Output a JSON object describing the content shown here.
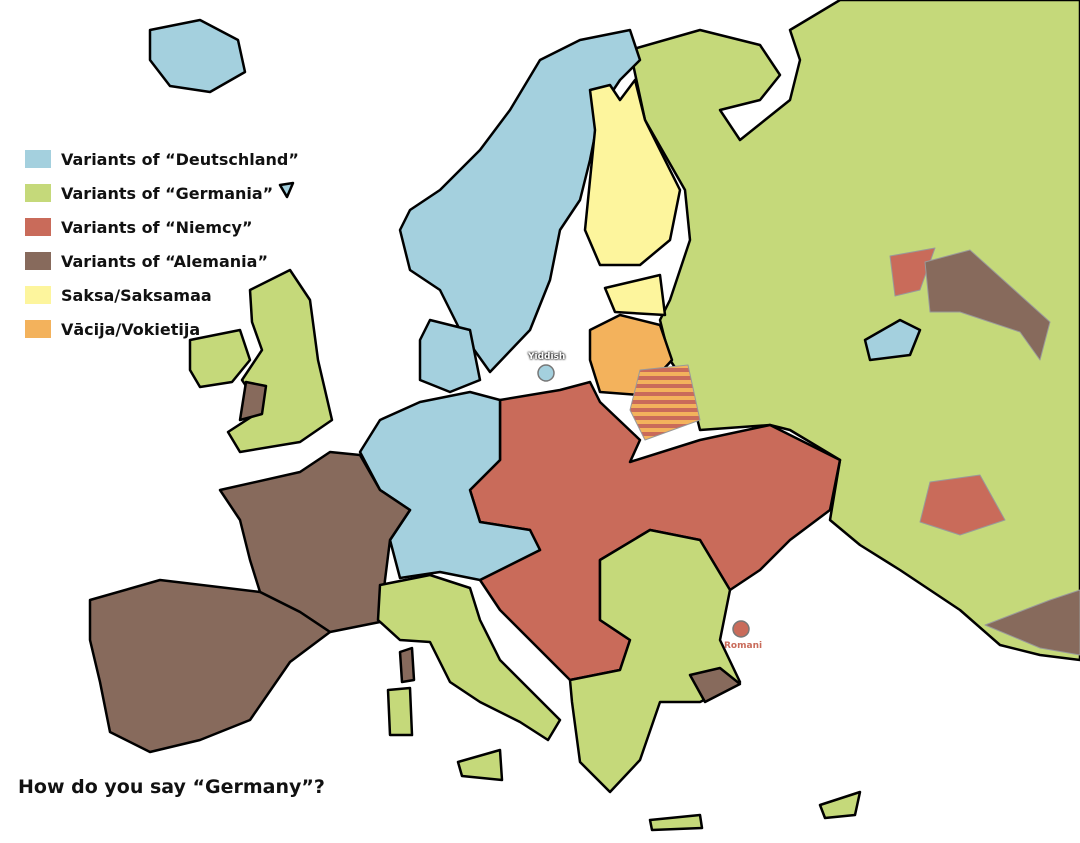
{
  "title": "How do you say “Germany”?",
  "colors": {
    "deutschland": "#a4d0de",
    "germania": "#c5d97a",
    "niemcy": "#c96b5a",
    "alemania": "#876a5c",
    "saksa": "#fdf59d",
    "vacija": "#f3b25c"
  },
  "legend": [
    {
      "key": "deutschland",
      "label": "Variants of “Deutschland”"
    },
    {
      "key": "germania",
      "label": "Variants of “Germania”"
    },
    {
      "key": "niemcy",
      "label": "Variants of “Niemcy”"
    },
    {
      "key": "alemania",
      "label": "Variants of “Alemania”"
    },
    {
      "key": "saksa",
      "label": "Saksa/Saksamaa"
    },
    {
      "key": "vacija",
      "label": "Vācija/Vokietija"
    }
  ],
  "labels": {
    "yiddish": "Yiddish",
    "romani": "Romani"
  }
}
